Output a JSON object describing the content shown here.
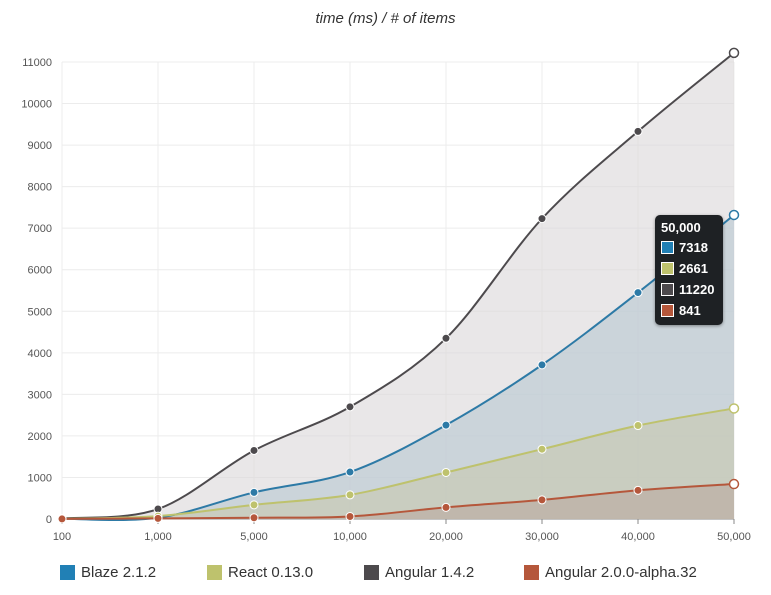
{
  "chart_data": {
    "type": "area",
    "title": "time (ms) / # of items",
    "categories": [
      "100",
      "1,000",
      "5,000",
      "10,000",
      "20,000",
      "30,000",
      "40,000",
      "50,000"
    ],
    "yticks": [
      0,
      1000,
      2000,
      3000,
      4000,
      5000,
      6000,
      7000,
      8000,
      9000,
      10000,
      11000
    ],
    "ylim": [
      0,
      11000
    ],
    "grid": true,
    "legend_position": "bottom",
    "series": [
      {
        "name": "Angular 1.4.2",
        "color": "#4d4a4d",
        "fill": "#dcd8da",
        "values": [
          15,
          240,
          1650,
          2700,
          4350,
          7230,
          9330,
          11220
        ]
      },
      {
        "name": "Blaze 2.1.2",
        "color": "#2d7aa6",
        "fill": "#b8c8d2",
        "values": [
          5,
          30,
          640,
          1130,
          2260,
          3710,
          5450,
          7318
        ]
      },
      {
        "name": "React 0.13.0",
        "color": "#bec26d",
        "fill": "#c8c8b0",
        "values": [
          3,
          70,
          340,
          580,
          1120,
          1680,
          2250,
          2661
        ]
      },
      {
        "name": "Angular 2.0.0-alpha.32",
        "color": "#b5573b",
        "fill": "#bcaaa0",
        "values": [
          2,
          15,
          30,
          60,
          280,
          460,
          690,
          841
        ]
      }
    ],
    "tooltip": {
      "title": "50,000",
      "rows": [
        {
          "value": "7318",
          "color": "#2180b5"
        },
        {
          "value": "2661",
          "color": "#bec26d"
        },
        {
          "value": "11220",
          "color": "#4d4a4d"
        },
        {
          "value": "841",
          "color": "#b5573b"
        }
      ]
    },
    "legend": [
      {
        "label": "Blaze 2.1.2",
        "color": "#2180b5"
      },
      {
        "label": "React 0.13.0",
        "color": "#bec26d"
      },
      {
        "label": "Angular 1.4.2",
        "color": "#4d4a4d"
      },
      {
        "label": "Angular 2.0.0-alpha.32",
        "color": "#b5573b"
      }
    ]
  }
}
